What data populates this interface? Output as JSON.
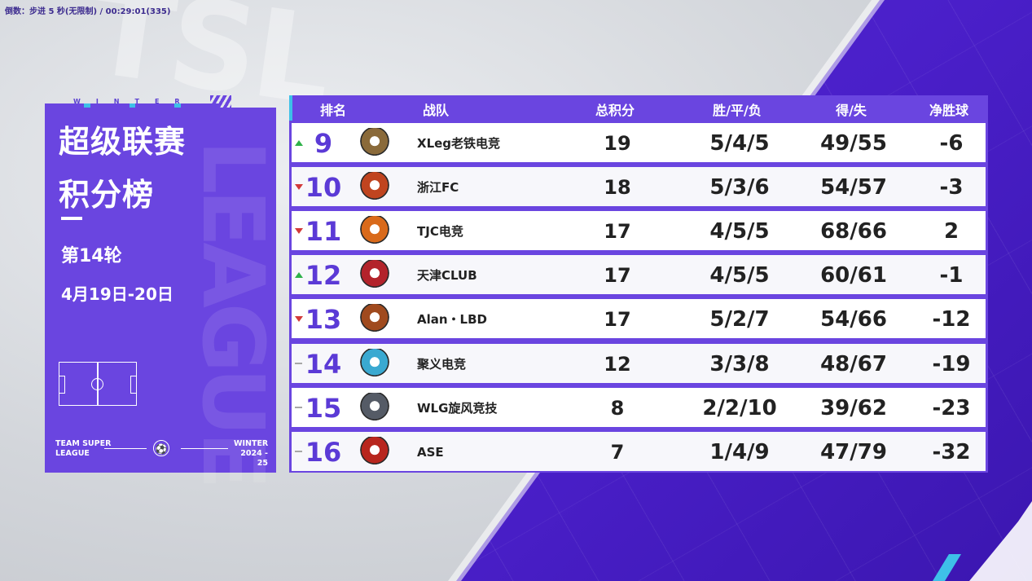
{
  "overlay": {
    "timer_text": "倒数：步进 5 秒(无限制) / 00:29:01(335)"
  },
  "background": {
    "watermark": "TSL",
    "brand_color": "#5a33d6",
    "accent_cyan": "#3ec0e8"
  },
  "panel": {
    "season_word": "WINTER",
    "title_line1": "超级联赛",
    "title_line2": "积分榜",
    "round": "第14轮",
    "dates": "4月19日-20日",
    "big_vertical": "LEAGUE",
    "footer_left_1": "TEAM SUPER",
    "footer_left_2": "LEAGUE",
    "footer_right_1": "WINTER",
    "footer_right_2": "2024 - 25",
    "ball_icon": "⚽"
  },
  "table": {
    "headers": {
      "rank": "排名",
      "team": "战队",
      "points": "总积分",
      "wdl": "胜/平/负",
      "goals": "得/失",
      "gd": "净胜球"
    },
    "rows": [
      {
        "trend": "up",
        "rank": "9",
        "team": "XLeg老铁电竞",
        "points": "19",
        "wdl": "5/4/5",
        "goals": "49/55",
        "gd": "-6",
        "logo_color": "#8a6a3a",
        "logo_icon": "bird-logo-icon"
      },
      {
        "trend": "down",
        "rank": "10",
        "team": "浙江FC",
        "points": "18",
        "wdl": "5/3/6",
        "goals": "54/57",
        "gd": "-3",
        "logo_color": "#c0441f",
        "logo_icon": "shield-logo-icon"
      },
      {
        "trend": "down",
        "rank": "11",
        "team": "TJC电竞",
        "points": "17",
        "wdl": "4/5/5",
        "goals": "68/66",
        "gd": "2",
        "logo_color": "#d96a1b",
        "logo_icon": "phoenix-logo-icon"
      },
      {
        "trend": "up",
        "rank": "12",
        "team": "天津CLUB",
        "points": "17",
        "wdl": "4/5/5",
        "goals": "60/61",
        "gd": "-1",
        "logo_color": "#b3232b",
        "logo_icon": "demon-logo-icon"
      },
      {
        "trend": "down",
        "rank": "13",
        "team": "Alan・LBD",
        "points": "17",
        "wdl": "5/2/7",
        "goals": "54/66",
        "gd": "-12",
        "logo_color": "#a04a1e",
        "logo_icon": "eagle-logo-icon"
      },
      {
        "trend": "same",
        "rank": "14",
        "team": "聚义电竞",
        "points": "12",
        "wdl": "3/3/8",
        "goals": "48/67",
        "gd": "-19",
        "logo_color": "#3aa9d1",
        "logo_icon": "wolf-logo-icon"
      },
      {
        "trend": "same",
        "rank": "15",
        "team": "WLG旋风竞技",
        "points": "8",
        "wdl": "2/2/10",
        "goals": "39/62",
        "gd": "-23",
        "logo_color": "#555b66",
        "logo_icon": "tornado-logo-icon"
      },
      {
        "trend": "same",
        "rank": "16",
        "team": "ASE",
        "points": "7",
        "wdl": "1/4/9",
        "goals": "47/79",
        "gd": "-32",
        "logo_color": "#b8261e",
        "logo_icon": "dragon-logo-icon"
      }
    ]
  }
}
